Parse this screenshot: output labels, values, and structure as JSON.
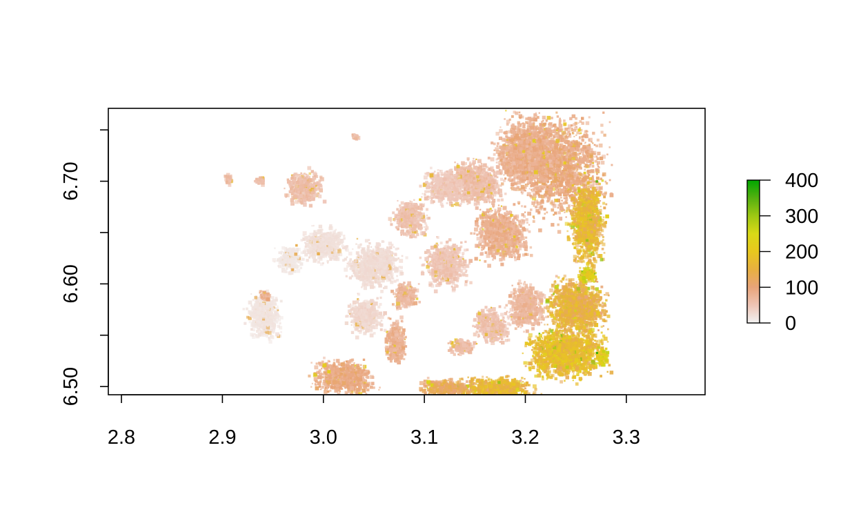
{
  "chart_data": {
    "type": "heatmap",
    "title": "",
    "xlabel": "",
    "ylabel": "",
    "xlim": [
      2.787,
      3.378
    ],
    "ylim": [
      6.492,
      6.771
    ],
    "x_ticks": [
      {
        "value": 2.8,
        "label": "2.8"
      },
      {
        "value": 2.9,
        "label": "2.9"
      },
      {
        "value": 3.0,
        "label": "3.0"
      },
      {
        "value": 3.1,
        "label": "3.1"
      },
      {
        "value": 3.2,
        "label": "3.2"
      },
      {
        "value": 3.3,
        "label": "3.3"
      }
    ],
    "y_ticks": [
      {
        "value": 6.5,
        "label": "6.50"
      },
      {
        "value": 6.55,
        "label": ""
      },
      {
        "value": 6.6,
        "label": "6.60"
      },
      {
        "value": 6.65,
        "label": ""
      },
      {
        "value": 6.7,
        "label": "6.70"
      },
      {
        "value": 6.75,
        "label": ""
      }
    ],
    "raster_extent": {
      "xmin": 2.88,
      "xmax": 3.285,
      "ymin": 6.492,
      "ymax": 6.771
    },
    "legend": {
      "position": "right",
      "min": 0,
      "max": 400,
      "ticks": [
        {
          "value": 0,
          "label": "0"
        },
        {
          "value": 100,
          "label": "100"
        },
        {
          "value": 200,
          "label": "200"
        },
        {
          "value": 300,
          "label": "300"
        },
        {
          "value": 400,
          "label": "400"
        }
      ],
      "colors": [
        "#f2f2f2",
        "#eec4b5",
        "#e8a479",
        "#e7b040",
        "#e8c81e",
        "#d9d917",
        "#9ec813",
        "#55b010",
        "#00a600"
      ]
    },
    "regions": [
      {
        "x": 3.235,
        "y": 6.715,
        "w": 0.105,
        "h": 0.12,
        "value": 95
      },
      {
        "x": 3.2,
        "y": 6.73,
        "w": 0.07,
        "h": 0.08,
        "value": 85
      },
      {
        "x": 3.175,
        "y": 6.65,
        "w": 0.06,
        "h": 0.06,
        "value": 80
      },
      {
        "x": 3.26,
        "y": 6.66,
        "w": 0.04,
        "h": 0.09,
        "value": 165
      },
      {
        "x": 3.25,
        "y": 6.58,
        "w": 0.07,
        "h": 0.06,
        "value": 150
      },
      {
        "x": 3.24,
        "y": 6.535,
        "w": 0.09,
        "h": 0.06,
        "value": 175
      },
      {
        "x": 3.17,
        "y": 6.5,
        "w": 0.09,
        "h": 0.025,
        "value": 160
      },
      {
        "x": 3.12,
        "y": 6.5,
        "w": 0.06,
        "h": 0.02,
        "value": 120
      },
      {
        "x": 3.15,
        "y": 6.7,
        "w": 0.06,
        "h": 0.05,
        "value": 60
      },
      {
        "x": 3.12,
        "y": 6.62,
        "w": 0.05,
        "h": 0.05,
        "value": 50
      },
      {
        "x": 3.085,
        "y": 6.665,
        "w": 0.04,
        "h": 0.04,
        "value": 55
      },
      {
        "x": 3.02,
        "y": 6.51,
        "w": 0.07,
        "h": 0.04,
        "value": 90
      },
      {
        "x": 3.07,
        "y": 6.545,
        "w": 0.025,
        "h": 0.05,
        "value": 80
      },
      {
        "x": 3.08,
        "y": 6.59,
        "w": 0.03,
        "h": 0.03,
        "value": 70
      },
      {
        "x": 3.135,
        "y": 6.54,
        "w": 0.03,
        "h": 0.02,
        "value": 65
      },
      {
        "x": 2.98,
        "y": 6.695,
        "w": 0.04,
        "h": 0.04,
        "value": 60
      },
      {
        "x": 3.0,
        "y": 6.64,
        "w": 0.05,
        "h": 0.04,
        "value": 20
      },
      {
        "x": 3.05,
        "y": 6.62,
        "w": 0.06,
        "h": 0.05,
        "value": 25
      },
      {
        "x": 3.2,
        "y": 6.58,
        "w": 0.04,
        "h": 0.05,
        "value": 70
      },
      {
        "x": 3.165,
        "y": 6.56,
        "w": 0.04,
        "h": 0.04,
        "value": 55
      },
      {
        "x": 3.04,
        "y": 6.57,
        "w": 0.04,
        "h": 0.04,
        "value": 30
      },
      {
        "x": 2.94,
        "y": 6.57,
        "w": 0.04,
        "h": 0.05,
        "value": 15
      },
      {
        "x": 2.965,
        "y": 6.625,
        "w": 0.03,
        "h": 0.03,
        "value": 12
      },
      {
        "x": 2.905,
        "y": 6.703,
        "w": 0.012,
        "h": 0.012,
        "value": 60
      },
      {
        "x": 2.936,
        "y": 6.702,
        "w": 0.012,
        "h": 0.01,
        "value": 55
      },
      {
        "x": 2.94,
        "y": 6.59,
        "w": 0.012,
        "h": 0.01,
        "value": 80
      },
      {
        "x": 3.03,
        "y": 6.745,
        "w": 0.008,
        "h": 0.006,
        "value": 60
      },
      {
        "x": 3.12,
        "y": 6.695,
        "w": 0.05,
        "h": 0.04,
        "value": 45
      },
      {
        "x": 3.26,
        "y": 6.61,
        "w": 0.02,
        "h": 0.02,
        "value": 220
      },
      {
        "x": 3.275,
        "y": 6.53,
        "w": 0.015,
        "h": 0.02,
        "value": 230
      }
    ]
  }
}
